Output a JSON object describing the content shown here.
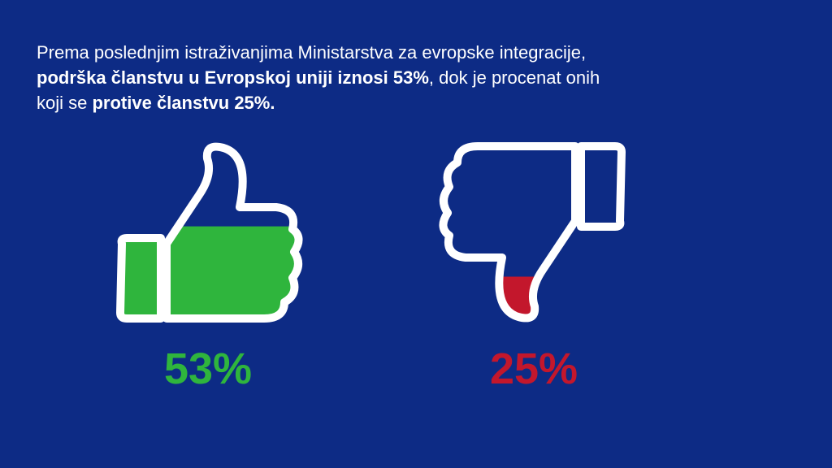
{
  "intro": [
    [
      {
        "text": "Prema poslednjim istraživanjima Ministarstva za evropske integracije,",
        "bold": false
      }
    ],
    [
      {
        "text": "podrška članstvu u Evropskoj uniji iznosi 53%",
        "bold": true
      },
      {
        "text": ", dok je procenat onih",
        "bold": false
      }
    ],
    [
      {
        "text": "koji se ",
        "bold": false
      },
      {
        "text": "protive članstvu 25%.",
        "bold": true
      }
    ]
  ],
  "chart_data": {
    "type": "pictogram",
    "ylim": [
      0,
      100
    ],
    "values": [
      53,
      25
    ],
    "value_labels": [
      "53%",
      "25%"
    ],
    "colors": [
      "#2fb53d",
      "#c3172c"
    ]
  }
}
